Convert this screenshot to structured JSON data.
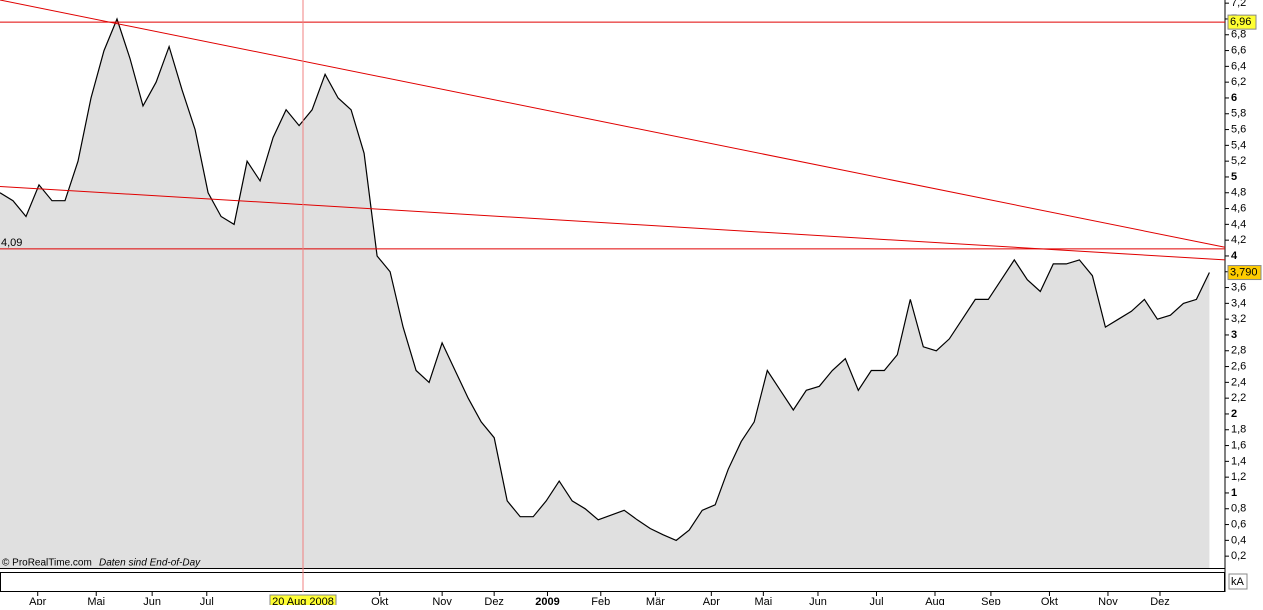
{
  "chart_data": {
    "type": "area",
    "x": [
      0,
      1,
      2,
      3,
      4,
      5,
      6,
      7,
      8,
      9,
      10,
      11,
      12,
      13,
      14,
      15,
      16,
      17,
      18,
      19,
      20,
      21,
      22,
      23,
      24,
      25,
      26,
      27,
      28,
      29,
      30,
      31,
      32,
      33,
      34,
      35,
      36,
      37,
      38,
      39,
      40,
      41,
      42,
      43,
      44,
      45,
      46,
      47,
      48,
      49,
      50,
      51,
      52,
      53,
      54,
      55,
      56,
      57,
      58,
      59,
      60,
      61,
      62,
      63,
      64,
      65,
      66,
      67,
      68,
      69,
      70,
      71,
      72,
      73,
      74,
      75,
      76,
      77,
      78,
      79,
      80,
      81,
      82,
      83,
      84,
      85,
      86,
      87,
      88,
      89,
      90,
      91,
      92,
      93
    ],
    "values": [
      4.8,
      4.7,
      4.5,
      4.9,
      4.7,
      4.7,
      5.2,
      6.0,
      6.6,
      7.0,
      6.5,
      5.9,
      6.2,
      6.65,
      6.1,
      5.6,
      4.8,
      4.5,
      4.4,
      5.2,
      4.95,
      5.5,
      5.85,
      5.65,
      5.85,
      6.3,
      6.0,
      5.85,
      5.3,
      4.0,
      3.8,
      3.1,
      2.55,
      2.4,
      2.9,
      2.55,
      2.2,
      1.9,
      1.7,
      0.9,
      0.7,
      0.7,
      0.9,
      1.15,
      0.9,
      0.8,
      0.66,
      0.72,
      0.78,
      0.66,
      0.55,
      0.47,
      0.4,
      0.53,
      0.78,
      0.85,
      1.3,
      1.65,
      1.9,
      2.55,
      2.3,
      2.05,
      2.3,
      2.35,
      2.55,
      2.7,
      2.3,
      2.55,
      2.55,
      2.75,
      3.45,
      2.85,
      2.8,
      2.95,
      3.2,
      3.45,
      3.45,
      3.7,
      3.95,
      3.7,
      3.55,
      3.9,
      3.9,
      3.95,
      3.75,
      3.1,
      3.2,
      3.3,
      3.45,
      3.2,
      3.25,
      3.4,
      3.45,
      3.79
    ],
    "color": "#000000",
    "fill": "#e0e0e0",
    "xlim": [
      0,
      94.2
    ],
    "ylim": [
      0.05,
      7.24
    ],
    "xticks": [
      {
        "value": 2.9,
        "label": "Apr"
      },
      {
        "value": 7.4,
        "label": "Mai"
      },
      {
        "value": 11.7,
        "label": "Jun"
      },
      {
        "value": 15.9,
        "label": "Jul"
      },
      {
        "value": 29.2,
        "label": "Okt"
      },
      {
        "value": 34,
        "label": "Nov"
      },
      {
        "value": 38,
        "label": "Dez"
      },
      {
        "value": 42.1,
        "label": "2009"
      },
      {
        "value": 46.2,
        "label": "Feb"
      },
      {
        "value": 50.4,
        "label": "Mär"
      },
      {
        "value": 54.7,
        "label": "Apr"
      },
      {
        "value": 58.7,
        "label": "Mai"
      },
      {
        "value": 62.9,
        "label": "Jun"
      },
      {
        "value": 67.4,
        "label": "Jul"
      },
      {
        "value": 71.9,
        "label": "Aug"
      },
      {
        "value": 76.2,
        "label": "Sep"
      },
      {
        "value": 80.7,
        "label": "Okt"
      },
      {
        "value": 85.2,
        "label": "Nov"
      },
      {
        "value": 89.2,
        "label": "Dez"
      }
    ],
    "yticks": [
      {
        "value": 7.2,
        "label": "7,2"
      },
      7,
      {
        "value": 6.8,
        "label": "6,8"
      },
      {
        "value": 6.6,
        "label": "6,6"
      },
      {
        "value": 6.4,
        "label": "6,4"
      },
      {
        "value": 6.2,
        "label": "6,2"
      },
      6,
      {
        "value": 5.8,
        "label": "5,8"
      },
      {
        "value": 5.6,
        "label": "5,6"
      },
      {
        "value": 5.4,
        "label": "5,4"
      },
      {
        "value": 5.2,
        "label": "5,2"
      },
      5,
      {
        "value": 4.8,
        "label": "4,8"
      },
      {
        "value": 4.6,
        "label": "4,6"
      },
      {
        "value": 4.4,
        "label": "4,4"
      },
      {
        "value": 4.2,
        "label": "4,2"
      },
      4,
      {
        "value": 3.8,
        "label": "3,8"
      },
      {
        "value": 3.6,
        "label": "3,6"
      },
      {
        "value": 3.4,
        "label": "3,4"
      },
      {
        "value": 3.2,
        "label": "3,2"
      },
      3,
      {
        "value": 2.8,
        "label": "2,8"
      },
      {
        "value": 2.6,
        "label": "2,6"
      },
      {
        "value": 2.4,
        "label": "2,4"
      },
      {
        "value": 2.2,
        "label": "2,2"
      },
      2,
      {
        "value": 1.8,
        "label": "1,8"
      },
      {
        "value": 1.6,
        "label": "1,6"
      },
      {
        "value": 1.4,
        "label": "1,4"
      },
      {
        "value": 1.2,
        "label": "1,2"
      },
      1,
      {
        "value": 0.8,
        "label": "0,8"
      },
      {
        "value": 0.6,
        "label": "0,6"
      },
      {
        "value": 0.4,
        "label": "0,4"
      },
      {
        "value": 0.2,
        "label": "0,2"
      }
    ],
    "line_color": "#e00000",
    "reference_lines": [
      {
        "value": 6.96,
        "label": "6,96",
        "side": "right"
      },
      {
        "value": 4.09,
        "label": "4,09",
        "side": "left"
      }
    ],
    "trend_lines": [
      {
        "x": [
          0,
          94.2
        ],
        "values": [
          7.24,
          4.11
        ]
      },
      {
        "x": [
          0,
          94.2
        ],
        "values": [
          4.88,
          3.95
        ]
      }
    ],
    "crosshair": {
      "x": 23.3,
      "label": "20 Aug 2008"
    },
    "last_value": {
      "value": 3.79,
      "label": "3,790"
    },
    "footer": "© ProRealTime.com",
    "footer_note": "Daten sind End-of-Day",
    "volume_label": "kA"
  }
}
